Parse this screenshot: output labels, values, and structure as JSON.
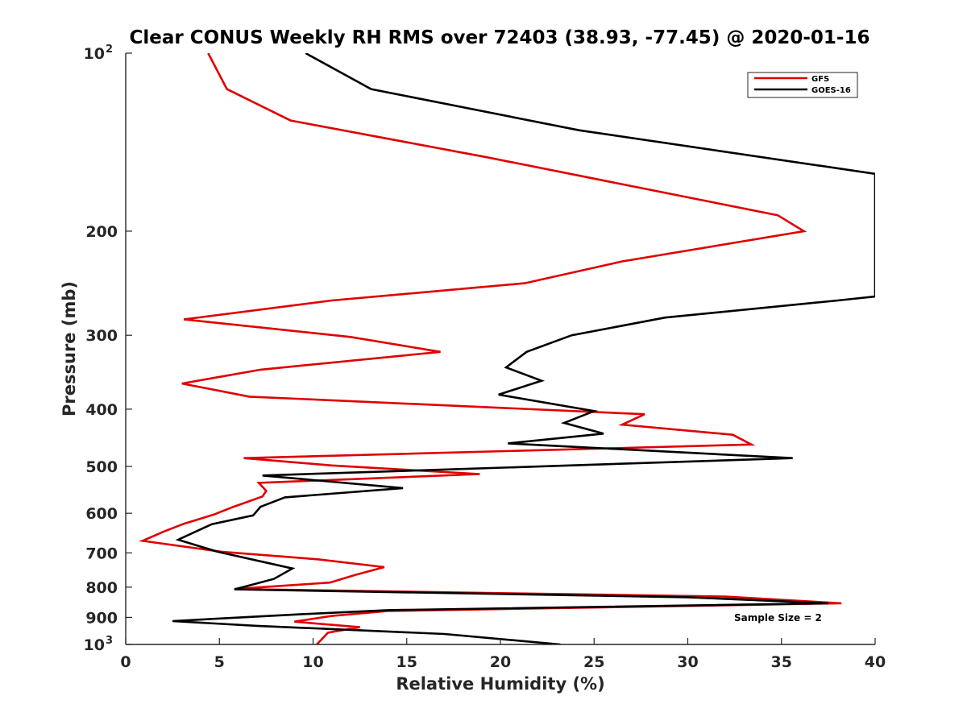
{
  "chart_data": {
    "type": "line",
    "title": "Clear CONUS Weekly RH RMS over 72403 (38.93, -77.45) @ 2020-01-16",
    "xlabel": "Relative Humidity (%)",
    "ylabel": "Pressure (mb)",
    "xlim": [
      0,
      40
    ],
    "ylim": [
      100,
      1000
    ],
    "yscale": "log",
    "y_reversed": true,
    "grid": false,
    "legend_position": "top-right",
    "x_ticks": [
      0,
      5,
      10,
      15,
      20,
      25,
      30,
      35,
      40
    ],
    "x_tick_labels": [
      "0",
      "5",
      "10",
      "15",
      "20",
      "25",
      "30",
      "35",
      "40"
    ],
    "y_ticks": [
      {
        "value": 100,
        "base": "10",
        "exp": "2"
      },
      {
        "value": 200,
        "label": "200"
      },
      {
        "value": 300,
        "label": "300"
      },
      {
        "value": 400,
        "label": "400"
      },
      {
        "value": 500,
        "label": "500"
      },
      {
        "value": 600,
        "label": "600"
      },
      {
        "value": 700,
        "label": "700"
      },
      {
        "value": 800,
        "label": "800"
      },
      {
        "value": 900,
        "label": "900"
      },
      {
        "value": 1000,
        "base": "10",
        "exp": "3"
      }
    ],
    "annotation": "Sample Size = 2",
    "series": [
      {
        "name": "GFS",
        "color": "#e00000",
        "points": [
          [
            4.4,
            100
          ],
          [
            5.4,
            115
          ],
          [
            8.8,
            130
          ],
          [
            19.3,
            150
          ],
          [
            34.8,
            188
          ],
          [
            36.2,
            200
          ],
          [
            26.5,
            225
          ],
          [
            21.3,
            245
          ],
          [
            11.0,
            262
          ],
          [
            3.1,
            282
          ],
          [
            12.0,
            302
          ],
          [
            16.8,
            320
          ],
          [
            7.2,
            343
          ],
          [
            3.0,
            362
          ],
          [
            6.6,
            381
          ],
          [
            27.7,
            408
          ],
          [
            26.5,
            425
          ],
          [
            32.4,
            442
          ],
          [
            33.4,
            459
          ],
          [
            6.3,
            484
          ],
          [
            11.0,
            498
          ],
          [
            18.9,
            515
          ],
          [
            7.1,
            533
          ],
          [
            7.5,
            550
          ],
          [
            7.3,
            562
          ],
          [
            5.7,
            586
          ],
          [
            4.7,
            603
          ],
          [
            3.1,
            625
          ],
          [
            2.0,
            645
          ],
          [
            0.9,
            668
          ],
          [
            5.1,
            697
          ],
          [
            10.3,
            718
          ],
          [
            13.8,
            740
          ],
          [
            12.3,
            762
          ],
          [
            10.9,
            786
          ],
          [
            5.8,
            806
          ],
          [
            32.0,
            830
          ],
          [
            38.2,
            852
          ],
          [
            14.0,
            878
          ],
          [
            11.0,
            895
          ],
          [
            9.0,
            915
          ],
          [
            12.5,
            935
          ],
          [
            10.8,
            955
          ],
          [
            10.2,
            1000
          ]
        ]
      },
      {
        "name": "GOES-16",
        "color": "#000000",
        "points": [
          [
            9.6,
            100
          ],
          [
            13.1,
            115
          ],
          [
            24.2,
            135
          ],
          [
            40.0,
            160
          ],
          [
            40.0,
            258
          ],
          [
            38.0,
            262
          ],
          [
            28.8,
            280
          ],
          [
            23.8,
            300
          ],
          [
            21.4,
            320
          ],
          [
            20.3,
            340
          ],
          [
            22.2,
            358
          ],
          [
            19.9,
            378
          ],
          [
            25.0,
            403
          ],
          [
            23.4,
            422
          ],
          [
            25.5,
            440
          ],
          [
            20.4,
            457
          ],
          [
            35.6,
            484
          ],
          [
            7.3,
            518
          ],
          [
            14.8,
            544
          ],
          [
            8.5,
            564
          ],
          [
            7.2,
            585
          ],
          [
            6.8,
            605
          ],
          [
            4.6,
            626
          ],
          [
            2.8,
            665
          ],
          [
            4.9,
            697
          ],
          [
            8.9,
            744
          ],
          [
            7.9,
            775
          ],
          [
            5.8,
            807
          ],
          [
            30.0,
            832
          ],
          [
            37.5,
            852
          ],
          [
            14.0,
            875
          ],
          [
            9.0,
            890
          ],
          [
            2.5,
            913
          ],
          [
            7.0,
            930
          ],
          [
            17.0,
            960
          ],
          [
            23.2,
            1000
          ]
        ]
      }
    ]
  }
}
